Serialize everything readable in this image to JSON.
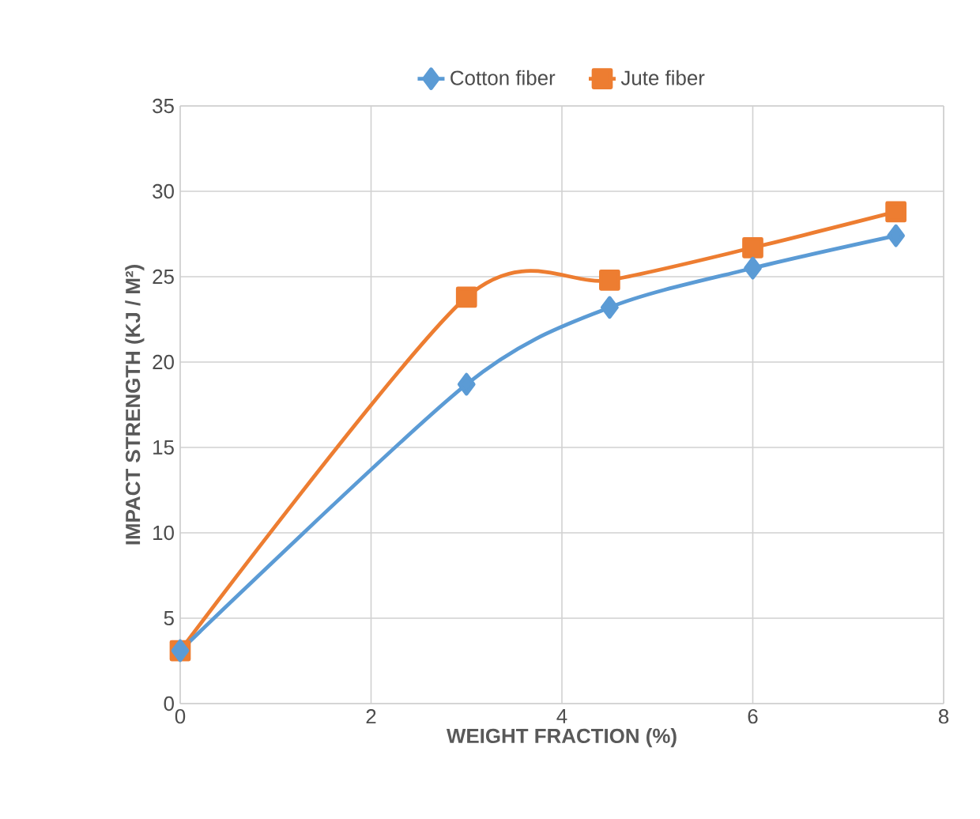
{
  "chart_data": {
    "type": "line",
    "xlabel": "WEIGHT FRACTION (%)",
    "ylabel": "IMPACT STRENGTH (KJ / M²)",
    "x": [
      0,
      3,
      4.5,
      6,
      7.5
    ],
    "series": [
      {
        "name": "Cotton fiber",
        "color": "#5b9bd5",
        "marker": "diamond",
        "values": [
          3.1,
          18.7,
          23.2,
          25.5,
          27.4
        ]
      },
      {
        "name": "Jute fiber",
        "color": "#ed7d31",
        "marker": "square",
        "values": [
          3.1,
          23.8,
          24.8,
          26.7,
          28.8
        ]
      }
    ],
    "xlim": [
      0,
      8
    ],
    "xticks": [
      0,
      2,
      4,
      6,
      8
    ],
    "ylim": [
      0,
      35
    ],
    "yticks": [
      0,
      5,
      10,
      15,
      20,
      25,
      30,
      35
    ],
    "grid": true,
    "legend": "top",
    "line_style": "solid"
  }
}
